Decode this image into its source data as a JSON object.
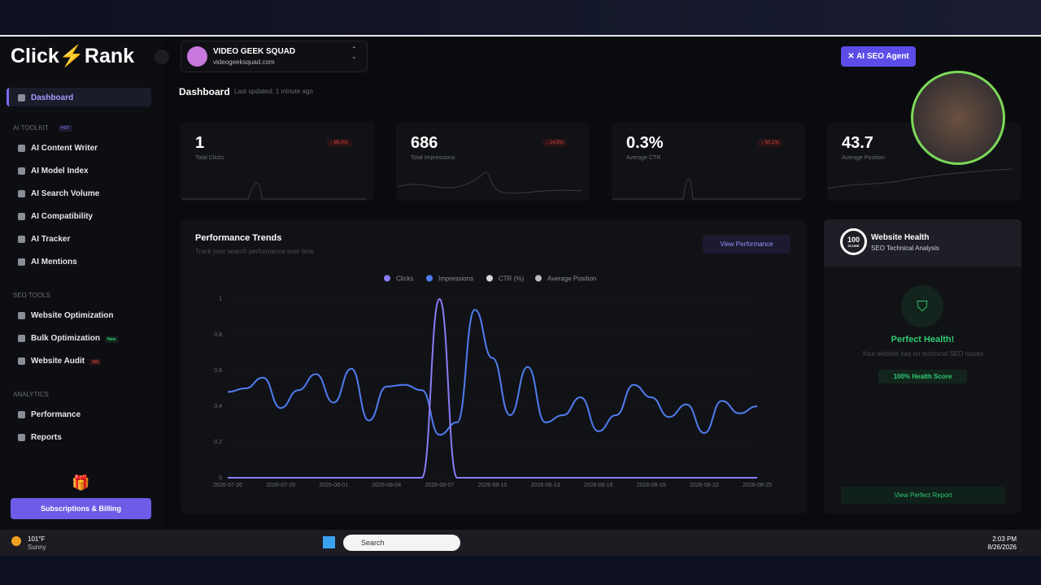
{
  "brand": {
    "part1": "Click",
    "part2": "Rank"
  },
  "sidebar": {
    "active": "Dashboard",
    "sections": [
      {
        "title": "AI TOOLKIT",
        "badge": "HOT",
        "items": [
          "AI Content Writer",
          "AI Model Index",
          "AI Search Volume",
          "AI Compatibility",
          "AI Tracker",
          "AI Mentions"
        ]
      },
      {
        "title": "SEO TOOLS",
        "items": [
          "Website Optimization",
          "Bulk Optimization",
          "Website Audit"
        ],
        "item_badges": {
          "1": "New",
          "2": "101"
        }
      },
      {
        "title": "ANALYTICS",
        "items": [
          "Performance",
          "Reports"
        ]
      }
    ],
    "billing": "Subscriptions & Billing"
  },
  "header": {
    "account_name": "VIDEO GEEK SQUAD",
    "account_domain": "videogeeksquad.com",
    "agent_button": "AI SEO Agent",
    "page_title": "Dashboard",
    "updated": "Last updated: 1 minute ago"
  },
  "kpis": [
    {
      "value": "1",
      "label": "Total Clicks",
      "change": "80.0%"
    },
    {
      "value": "686",
      "label": "Total Impressions",
      "change": "14.9%"
    },
    {
      "value": "0.3%",
      "label": "Average CTR",
      "change": "50.1%"
    },
    {
      "value": "43.7",
      "label": "Average Position"
    }
  ],
  "performance": {
    "title": "Performance Trends",
    "subtitle": "Track your search performance over time",
    "button": "View Performance",
    "chart_data": {
      "type": "line",
      "categories": [
        "2026-07-26",
        null,
        null,
        "2026-07-29",
        null,
        null,
        "2026-08-01",
        null,
        null,
        "2026-08-04",
        null,
        null,
        "2026-08-07",
        null,
        null,
        "2026-08-10",
        null,
        null,
        "2026-08-13",
        null,
        null,
        "2026-08-16",
        null,
        null,
        "2026-08-19",
        null,
        null,
        "2026-08-22",
        null,
        null,
        "2026-08-25"
      ],
      "series": [
        {
          "name": "Clicks",
          "color": "#8b7cf6",
          "values": [
            0,
            0,
            0,
            0,
            0,
            0,
            0,
            0,
            0,
            0,
            0,
            0,
            1,
            0,
            0,
            0,
            0,
            0,
            0,
            0,
            0,
            0,
            0,
            0,
            0,
            0,
            0,
            0,
            0,
            0,
            0
          ]
        },
        {
          "name": "Impressions",
          "color": "#4f7df0",
          "values": [
            0.48,
            0.5,
            0.56,
            0.39,
            0.49,
            0.58,
            0.42,
            0.61,
            0.32,
            0.51,
            0.52,
            0.49,
            0.24,
            0.31,
            0.94,
            0.67,
            0.35,
            0.62,
            0.31,
            0.35,
            0.45,
            0.26,
            0.35,
            0.52,
            0.45,
            0.34,
            0.41,
            0.25,
            0.43,
            0.36,
            0.4
          ]
        }
      ],
      "legend_only": [
        {
          "name": "CTR (%)",
          "color": "#d8d8d8"
        },
        {
          "name": "Average Position",
          "color": "#bdbdbd"
        }
      ],
      "ylim": [
        0,
        1
      ],
      "yticks": [
        0,
        0.2,
        0.4,
        0.6,
        0.8,
        1
      ],
      "grid": true
    }
  },
  "health": {
    "score": "100",
    "score_label": "SCORE",
    "title": "Website Health",
    "subtitle": "SEO Technical Analysis",
    "status": "Perfect Health!",
    "message": "Your website has no technical SEO issues",
    "badge": "100% Health Score",
    "button": "View Perfect Report"
  },
  "taskbar": {
    "temp": "101°F",
    "weather": "Sunny",
    "search": "Search",
    "time": "2:03 PM",
    "date": "8/26/2026"
  }
}
